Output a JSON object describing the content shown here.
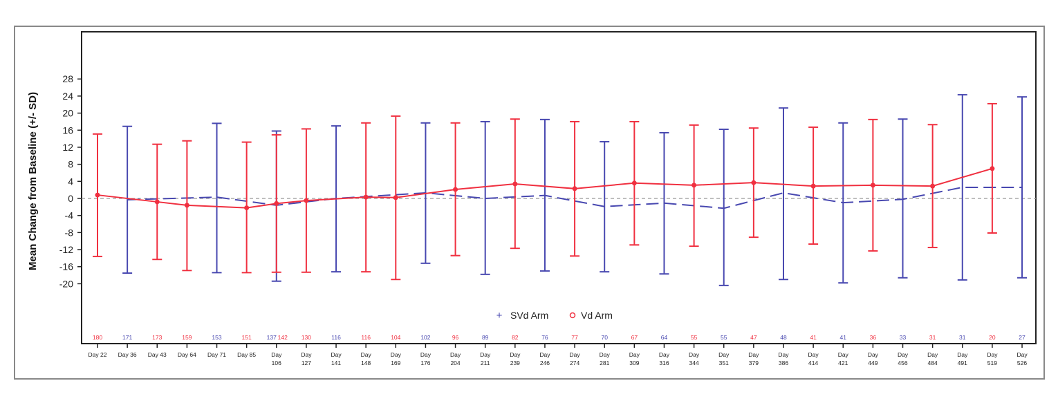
{
  "chart_data": {
    "type": "line",
    "ylabel": "Mean Change from Baseline (+/- SD)",
    "ylim": [
      -34,
      39
    ],
    "yticks": [
      28,
      24,
      20,
      16,
      12,
      8,
      4,
      0,
      -4,
      -8,
      -12,
      -16,
      -20
    ],
    "reference_line": 0,
    "legend_placement": "bottom-center",
    "categories": [
      "Day 22",
      "Day 36",
      "Day 43",
      "Day 64",
      "Day 71",
      "Day 85",
      "Day 106",
      "Day 127",
      "Day 141",
      "Day 148",
      "Day 169",
      "Day 176",
      "Day 204",
      "Day 211",
      "Day 239",
      "Day 246",
      "Day 274",
      "Day 281",
      "Day 309",
      "Day 316",
      "Day 344",
      "Day 351",
      "Day 379",
      "Day 386",
      "Day 414",
      "Day 421",
      "Day 449",
      "Day 456",
      "Day 484",
      "Day 491",
      "Day 519",
      "Day 526"
    ],
    "series": [
      {
        "name": "SVd Arm",
        "color": "#4848b0",
        "marker": "+",
        "line": "dashed",
        "points": [
          {
            "day": "Day 36",
            "mean": -0.3,
            "upper": 16.9,
            "lower": -17.5,
            "n": 171
          },
          {
            "day": "Day 71",
            "mean": 0.3,
            "upper": 17.6,
            "lower": -17.4,
            "n": 153
          },
          {
            "day": "Day 106",
            "mean": -1.6,
            "upper": 15.8,
            "lower": -19.4,
            "n": 137
          },
          {
            "day": "Day 141",
            "mean": 0.0,
            "upper": 17.0,
            "lower": -17.2,
            "n": 116
          },
          {
            "day": "Day 176",
            "mean": 1.3,
            "upper": 17.7,
            "lower": -15.2,
            "n": 102
          },
          {
            "day": "Day 211",
            "mean": 0.0,
            "upper": 18.0,
            "lower": -17.8,
            "n": 89
          },
          {
            "day": "Day 246",
            "mean": 0.7,
            "upper": 18.5,
            "lower": -17.0,
            "n": 76
          },
          {
            "day": "Day 281",
            "mean": -1.9,
            "upper": 13.3,
            "lower": -17.2,
            "n": 70
          },
          {
            "day": "Day 316",
            "mean": -1.1,
            "upper": 15.4,
            "lower": -17.7,
            "n": 64
          },
          {
            "day": "Day 351",
            "mean": -2.3,
            "upper": 16.2,
            "lower": -20.4,
            "n": 55
          },
          {
            "day": "Day 386",
            "mean": 1.3,
            "upper": 21.2,
            "lower": -19.0,
            "n": 48
          },
          {
            "day": "Day 421",
            "mean": -1.0,
            "upper": 17.7,
            "lower": -19.8,
            "n": 41
          },
          {
            "day": "Day 456",
            "mean": -0.2,
            "upper": 18.6,
            "lower": -18.6,
            "n": 33
          },
          {
            "day": "Day 491",
            "mean": 2.6,
            "upper": 24.3,
            "lower": -19.1,
            "n": 31
          },
          {
            "day": "Day 526",
            "mean": 2.6,
            "upper": 23.8,
            "lower": -18.6,
            "n": 27
          }
        ]
      },
      {
        "name": "Vd Arm",
        "color": "#f03040",
        "marker": "o",
        "line": "solid",
        "points": [
          {
            "day": "Day 22",
            "mean": 0.8,
            "upper": 15.1,
            "lower": -13.6,
            "n": 180
          },
          {
            "day": "Day 43",
            "mean": -0.8,
            "upper": 12.7,
            "lower": -14.3,
            "n": 173
          },
          {
            "day": "Day 64",
            "mean": -1.6,
            "upper": 13.5,
            "lower": -16.9,
            "n": 159
          },
          {
            "day": "Day 85",
            "mean": -2.2,
            "upper": 13.2,
            "lower": -17.4,
            "n": 151
          },
          {
            "day": "Day 106",
            "mean": -1.2,
            "upper": 14.9,
            "lower": -17.3,
            "n": 142
          },
          {
            "day": "Day 127",
            "mean": -0.5,
            "upper": 16.3,
            "lower": -17.3,
            "n": 130
          },
          {
            "day": "Day 148",
            "mean": 0.3,
            "upper": 17.7,
            "lower": -17.2,
            "n": 116
          },
          {
            "day": "Day 169",
            "mean": 0.2,
            "upper": 19.3,
            "lower": -19.0,
            "n": 104
          },
          {
            "day": "Day 204",
            "mean": 2.1,
            "upper": 17.7,
            "lower": -13.4,
            "n": 96
          },
          {
            "day": "Day 239",
            "mean": 3.4,
            "upper": 18.6,
            "lower": -11.7,
            "n": 82
          },
          {
            "day": "Day 274",
            "mean": 2.3,
            "upper": 18.0,
            "lower": -13.5,
            "n": 77
          },
          {
            "day": "Day 309",
            "mean": 3.6,
            "upper": 18.0,
            "lower": -10.9,
            "n": 67
          },
          {
            "day": "Day 344",
            "mean": 3.1,
            "upper": 17.2,
            "lower": -11.2,
            "n": 55
          },
          {
            "day": "Day 379",
            "mean": 3.7,
            "upper": 16.5,
            "lower": -9.1,
            "n": 47
          },
          {
            "day": "Day 414",
            "mean": 2.9,
            "upper": 16.7,
            "lower": -10.7,
            "n": 41
          },
          {
            "day": "Day 449",
            "mean": 3.1,
            "upper": 18.5,
            "lower": -12.3,
            "n": 36
          },
          {
            "day": "Day 484",
            "mean": 2.9,
            "upper": 17.3,
            "lower": -11.5,
            "n": 31
          },
          {
            "day": "Day 519",
            "mean": 7.0,
            "upper": 22.2,
            "lower": -8.1,
            "n": 20
          }
        ]
      }
    ]
  }
}
